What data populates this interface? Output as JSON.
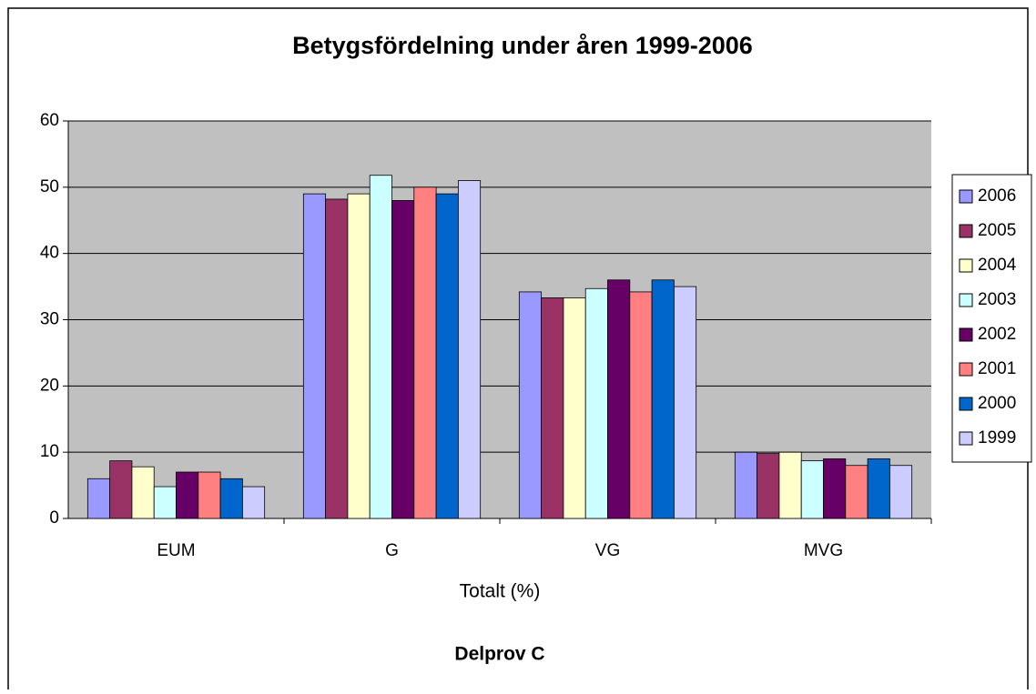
{
  "chart_data": {
    "type": "bar",
    "title": "Betygsfördelning under åren 1999-2006",
    "x_label": "Totalt (%)",
    "subtitle": "Delprov C",
    "categories": [
      "EUM",
      "G",
      "VG",
      "MVG"
    ],
    "series": [
      {
        "name": "2006",
        "color": "#9999ff",
        "values": [
          6,
          49,
          34.2,
          10
        ]
      },
      {
        "name": "2005",
        "color": "#993366",
        "values": [
          8.7,
          48.2,
          33.3,
          9.8
        ]
      },
      {
        "name": "2004",
        "color": "#ffffcc",
        "values": [
          7.8,
          49,
          33.3,
          10
        ]
      },
      {
        "name": "2003",
        "color": "#ccffff",
        "values": [
          4.8,
          51.8,
          34.7,
          8.7
        ]
      },
      {
        "name": "2002",
        "color": "#660066",
        "values": [
          7,
          48,
          36,
          9
        ]
      },
      {
        "name": "2001",
        "color": "#ff8080",
        "values": [
          7,
          50,
          34.2,
          8
        ]
      },
      {
        "name": "2000",
        "color": "#0066cc",
        "values": [
          6,
          49,
          36,
          9
        ]
      },
      {
        "name": "1999",
        "color": "#ccccff",
        "values": [
          4.8,
          51,
          35,
          8
        ]
      }
    ],
    "ylim": [
      0,
      60
    ],
    "yticks": [
      0,
      10,
      20,
      30,
      40,
      50,
      60
    ],
    "grid": true,
    "legend": "right"
  }
}
